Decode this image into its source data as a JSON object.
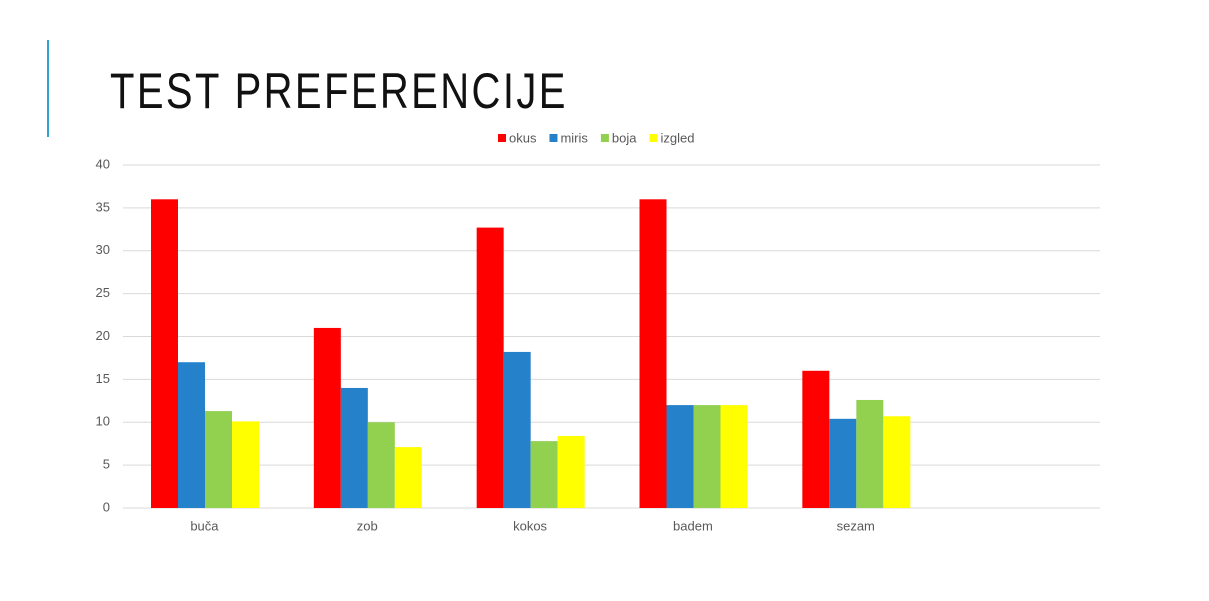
{
  "chart_data": {
    "type": "bar",
    "title": "TEST PREFERENCIJE",
    "categories": [
      "buča",
      "zob",
      "kokos",
      "badem",
      "sezam",
      null
    ],
    "series": [
      {
        "name": "okus",
        "color": "#ff0000",
        "values": [
          36,
          21,
          32.7,
          36,
          16,
          null
        ]
      },
      {
        "name": "miris",
        "color": "#2581c9",
        "values": [
          17,
          14,
          18.2,
          12,
          10.4,
          null
        ]
      },
      {
        "name": "boja",
        "color": "#92d050",
        "values": [
          11.3,
          10,
          7.8,
          12,
          12.6,
          null
        ]
      },
      {
        "name": "izgled",
        "color": "#ffff00",
        "values": [
          10.1,
          7.1,
          8.4,
          12,
          10.7,
          null
        ]
      }
    ],
    "ylim": [
      0,
      40
    ],
    "yticks": [
      0,
      5,
      10,
      15,
      20,
      25,
      30,
      35,
      40
    ],
    "grid": true,
    "legend": "top"
  }
}
